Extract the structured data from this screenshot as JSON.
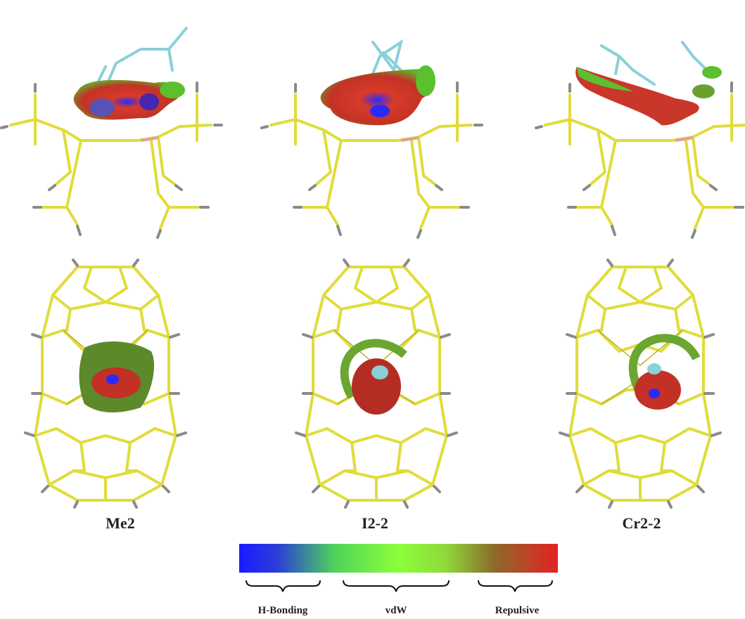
{
  "labels": [
    "Me2",
    "I2-2",
    "Cr2-2"
  ],
  "legend": {
    "ranges": [
      "H-Bonding",
      "vdW",
      "Repulsive"
    ]
  }
}
